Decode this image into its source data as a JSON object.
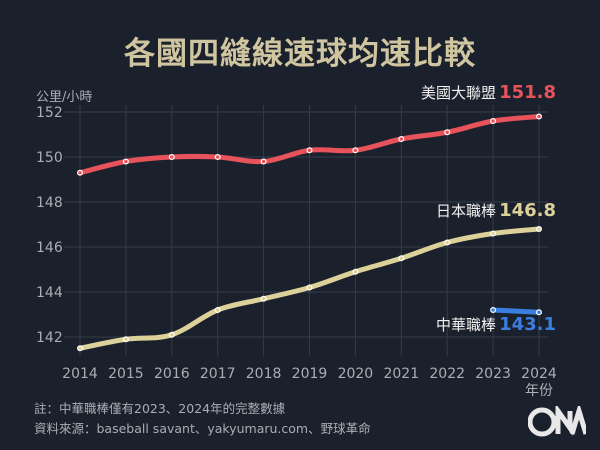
{
  "chart_data": {
    "type": "line",
    "title": "各國四縫線速球均速比較",
    "ylabel": "公里/小時",
    "xlabel": "年份",
    "x": [
      2014,
      2015,
      2016,
      2017,
      2018,
      2019,
      2020,
      2021,
      2022,
      2023,
      2024
    ],
    "ylim": [
      141.5,
      152.3
    ],
    "yticks": [
      142,
      144,
      146,
      148,
      150,
      152
    ],
    "grid": true,
    "series": [
      {
        "name": "美國大聯盟",
        "color": "#e8525a",
        "end_label": "151.8",
        "values": [
          149.3,
          149.8,
          150.0,
          150.0,
          149.8,
          150.3,
          150.3,
          150.8,
          151.1,
          151.6,
          151.8
        ]
      },
      {
        "name": "日本職棒",
        "color": "#ddd19a",
        "end_label": "146.8",
        "values": [
          141.5,
          141.9,
          142.1,
          143.2,
          143.7,
          144.2,
          144.9,
          145.5,
          146.2,
          146.6,
          146.8
        ]
      },
      {
        "name": "中華職棒",
        "color": "#3a7fe0",
        "end_label": "143.1",
        "values": [
          null,
          null,
          null,
          null,
          null,
          null,
          null,
          null,
          null,
          143.2,
          143.1
        ]
      }
    ]
  },
  "notes": {
    "note": "註：中華職棒僅有2023、2024年的完整數據",
    "source": "資料來源：baseball savant、yakyumaru.com、野球革命"
  },
  "logo": "CNA"
}
